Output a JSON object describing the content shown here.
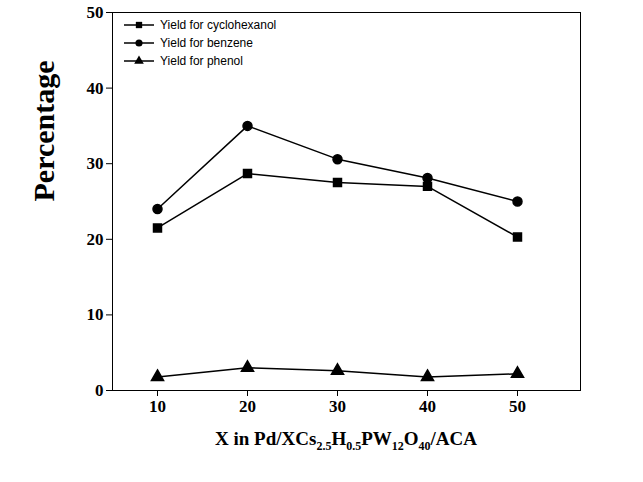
{
  "chart_data": {
    "type": "line",
    "xlabel": "X in Pd/XCs2.5H0.5PW12O40/ACA",
    "ylabel": "Percentage",
    "x": [
      10,
      20,
      30,
      40,
      50
    ],
    "xlim": [
      5,
      57
    ],
    "xticks": [
      10,
      20,
      30,
      40,
      50
    ],
    "ylim": [
      0,
      50
    ],
    "yticks": [
      0,
      10,
      20,
      30,
      40,
      50
    ],
    "legend": "upper left",
    "series": [
      {
        "name": "Yield for cyclohexanol",
        "color": "#000000",
        "marker": "square",
        "values": [
          21.5,
          28.7,
          27.5,
          27.0,
          20.3
        ]
      },
      {
        "name": "Yield for benzene",
        "color": "#000000",
        "marker": "circle",
        "values": [
          24.0,
          35.0,
          30.6,
          28.1,
          25.0
        ]
      },
      {
        "name": "Yield for phenol",
        "color": "#000000",
        "marker": "triangle",
        "values": [
          1.8,
          3.0,
          2.6,
          1.8,
          2.2
        ]
      }
    ]
  }
}
